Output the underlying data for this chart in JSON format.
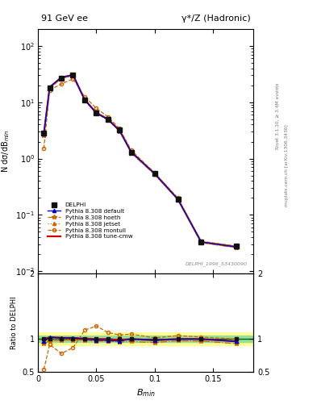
{
  "title_left": "91 GeV ee",
  "title_right": "γ*/Z (Hadronic)",
  "right_label_top": "Rivet 3.1.10, ≥ 3.4M events",
  "right_label_bot": "mcplots.cern.ch [arXiv:1306.3436]",
  "dataset_label": "DELPHI_1996_S3430090",
  "xlabel": "$B_{min}$",
  "ylabel_main": "N dσ/dB$_{min}$",
  "ylabel_ratio": "Ratio to DELPHI",
  "xlim": [
    0.0,
    0.185
  ],
  "ylim_main_log": [
    0.009,
    200
  ],
  "ylim_ratio": [
    0.5,
    2.0
  ],
  "xticks": [
    0.0,
    0.05,
    0.1,
    0.15
  ],
  "xtick_labels": [
    "0",
    "0.05",
    "0.1",
    "0.15"
  ],
  "bmin_delphi": [
    0.005,
    0.01,
    0.02,
    0.03,
    0.04,
    0.05,
    0.06,
    0.07,
    0.08,
    0.1,
    0.12,
    0.14,
    0.17
  ],
  "delphi_y": [
    2.8,
    18.0,
    27.0,
    30.0,
    11.0,
    6.5,
    5.0,
    3.2,
    1.3,
    0.55,
    0.19,
    0.033,
    0.028
  ],
  "bmin_default": [
    0.005,
    0.01,
    0.02,
    0.03,
    0.04,
    0.05,
    0.06,
    0.07,
    0.08,
    0.1,
    0.12,
    0.14,
    0.17
  ],
  "default_y": [
    2.7,
    18.5,
    27.5,
    30.5,
    11.0,
    6.4,
    4.9,
    3.1,
    1.3,
    0.54,
    0.19,
    0.033,
    0.027
  ],
  "bmin_hoeth": [
    0.005,
    0.01,
    0.02,
    0.03,
    0.04,
    0.05,
    0.06,
    0.07,
    0.08,
    0.1,
    0.12,
    0.14,
    0.17
  ],
  "hoeth_y": [
    2.6,
    17.5,
    26.5,
    29.5,
    10.8,
    6.3,
    4.85,
    3.05,
    1.25,
    0.52,
    0.185,
    0.032,
    0.026
  ],
  "bmin_jetset": [
    0.005,
    0.01,
    0.02,
    0.03,
    0.04,
    0.05,
    0.06,
    0.07,
    0.08,
    0.1,
    0.12,
    0.14,
    0.17
  ],
  "jetset_y": [
    2.7,
    18.0,
    27.0,
    30.0,
    10.9,
    6.4,
    4.9,
    3.1,
    1.3,
    0.53,
    0.19,
    0.033,
    0.027
  ],
  "bmin_montull": [
    0.005,
    0.01,
    0.02,
    0.03,
    0.04,
    0.05,
    0.06,
    0.07,
    0.08,
    0.1,
    0.12,
    0.14,
    0.17
  ],
  "montull_y": [
    1.5,
    16.5,
    21.0,
    26.0,
    12.5,
    7.8,
    5.5,
    3.4,
    1.4,
    0.56,
    0.2,
    0.034,
    0.028
  ],
  "bmin_tunecmw": [
    0.005,
    0.01,
    0.02,
    0.03,
    0.04,
    0.05,
    0.06,
    0.07,
    0.08,
    0.1,
    0.12,
    0.14,
    0.17
  ],
  "tunecmw_y": [
    2.8,
    18.5,
    27.5,
    30.5,
    11.1,
    6.5,
    5.0,
    3.15,
    1.3,
    0.54,
    0.19,
    0.033,
    0.027
  ],
  "color_delphi": "#111111",
  "color_default": "#0000cc",
  "color_hoeth": "#cc6600",
  "color_jetset": "#cc6600",
  "color_montull": "#cc6600",
  "color_tunecmw": "#cc0000",
  "band_green": 0.05,
  "band_yellow": 0.1
}
